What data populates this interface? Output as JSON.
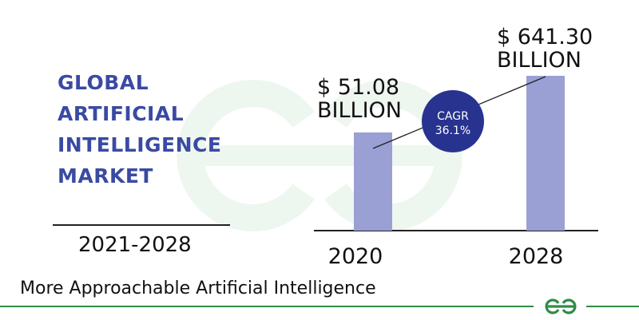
{
  "title": {
    "lines": [
      "GLOBAL",
      "ARTIFICIAL",
      "INTELLIGENCE",
      "MARKET"
    ]
  },
  "period": "2021-2028",
  "subtitle": "More Approachable Artificial Intelligence",
  "badge": {
    "line1": "CAGR",
    "line2": "36.1%"
  },
  "colors": {
    "title": "#3a4aa3",
    "bar": "#9aa0d3",
    "badge": "#27338f",
    "footer_green": "#2f8d46",
    "watermark": "#eef7f0"
  },
  "icons": {
    "logo": "geeksforgeeks-logo-icon",
    "watermark": "geeksforgeeks-watermark-icon"
  },
  "chart_data": {
    "type": "bar",
    "categories": [
      "2020",
      "2028"
    ],
    "values": [
      51.08,
      641.3
    ],
    "data_labels": [
      [
        "$ 51.08",
        "BILLION"
      ],
      [
        "$ 641.30",
        "BILLION"
      ]
    ],
    "annotation": [
      "CAGR",
      "36.1%"
    ],
    "trend_line": true,
    "grid": false,
    "legend": "none"
  }
}
